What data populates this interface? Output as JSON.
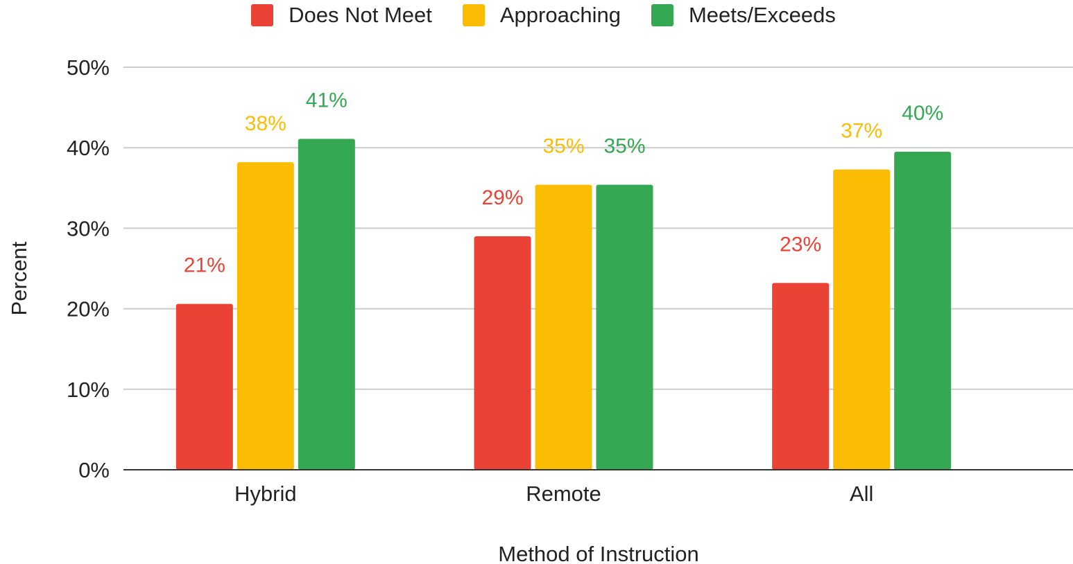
{
  "chart_data": {
    "type": "bar",
    "categories": [
      "Hybrid",
      "Remote",
      "All"
    ],
    "series": [
      {
        "name": "Does Not Meet",
        "color": "#ea4335",
        "values": [
          20.6,
          29.0,
          23.2
        ],
        "labels": [
          "21%",
          "29%",
          "23%"
        ]
      },
      {
        "name": "Approaching",
        "color": "#fbbc04",
        "values": [
          38.2,
          35.4,
          37.3
        ],
        "labels": [
          "38%",
          "35%",
          "37%"
        ]
      },
      {
        "name": "Meets/Exceeds",
        "color": "#34a853",
        "values": [
          41.1,
          35.4,
          39.5
        ],
        "labels": [
          "41%",
          "35%",
          "40%"
        ]
      }
    ],
    "xlabel": "Method of Instruction",
    "ylabel": "Percent",
    "ylim": [
      0,
      50
    ],
    "yticks": [
      0,
      10,
      20,
      30,
      40,
      50
    ],
    "ytick_labels": [
      "0%",
      "10%",
      "20%",
      "30%",
      "40%",
      "50%"
    ],
    "grid": true,
    "legend_position": "top-center"
  }
}
